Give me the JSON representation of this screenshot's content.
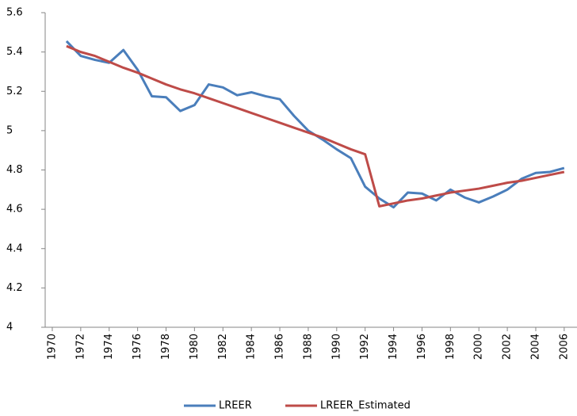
{
  "chart_data": {
    "type": "line",
    "x": [
      1971,
      1972,
      1973,
      1974,
      1975,
      1976,
      1977,
      1978,
      1979,
      1980,
      1981,
      1982,
      1983,
      1984,
      1985,
      1986,
      1987,
      1988,
      1989,
      1990,
      1991,
      1992,
      1993,
      1994,
      1995,
      1996,
      1997,
      1998,
      1999,
      2000,
      2001,
      2002,
      2003,
      2004,
      2005,
      2006
    ],
    "series": [
      {
        "name": "LREER",
        "color": "#4a7ebb",
        "values": [
          5.455,
          5.38,
          5.36,
          5.345,
          5.41,
          5.31,
          5.175,
          5.17,
          5.1,
          5.13,
          5.235,
          5.22,
          5.18,
          5.195,
          5.175,
          5.16,
          5.075,
          5.0,
          4.955,
          4.905,
          4.86,
          4.715,
          4.655,
          4.61,
          4.685,
          4.68,
          4.645,
          4.7,
          4.66,
          4.635,
          4.665,
          4.7,
          4.755,
          4.785,
          4.79,
          4.81
        ]
      },
      {
        "name": "LREER_Estimated",
        "color": "#be4b48",
        "values": [
          5.43,
          5.4,
          5.38,
          5.35,
          5.32,
          5.295,
          5.265,
          5.235,
          5.21,
          5.19,
          5.165,
          5.14,
          5.115,
          5.09,
          5.065,
          5.04,
          5.015,
          4.99,
          4.965,
          4.935,
          4.905,
          4.88,
          4.615,
          4.63,
          4.645,
          4.655,
          4.67,
          4.685,
          4.695,
          4.705,
          4.72,
          4.735,
          4.745,
          4.76,
          4.775,
          4.79
        ]
      }
    ],
    "xlim": [
      1969.5,
      2006.9
    ],
    "xticks": [
      1970,
      1972,
      1974,
      1976,
      1978,
      1980,
      1982,
      1984,
      1986,
      1988,
      1990,
      1992,
      1994,
      1996,
      1998,
      2000,
      2002,
      2004,
      2006
    ],
    "ylim": [
      4,
      5.6
    ],
    "yticks": [
      4,
      4.2,
      4.4,
      4.6,
      4.8,
      5,
      5.2,
      5.4,
      5.6
    ],
    "legend": "bottom"
  }
}
